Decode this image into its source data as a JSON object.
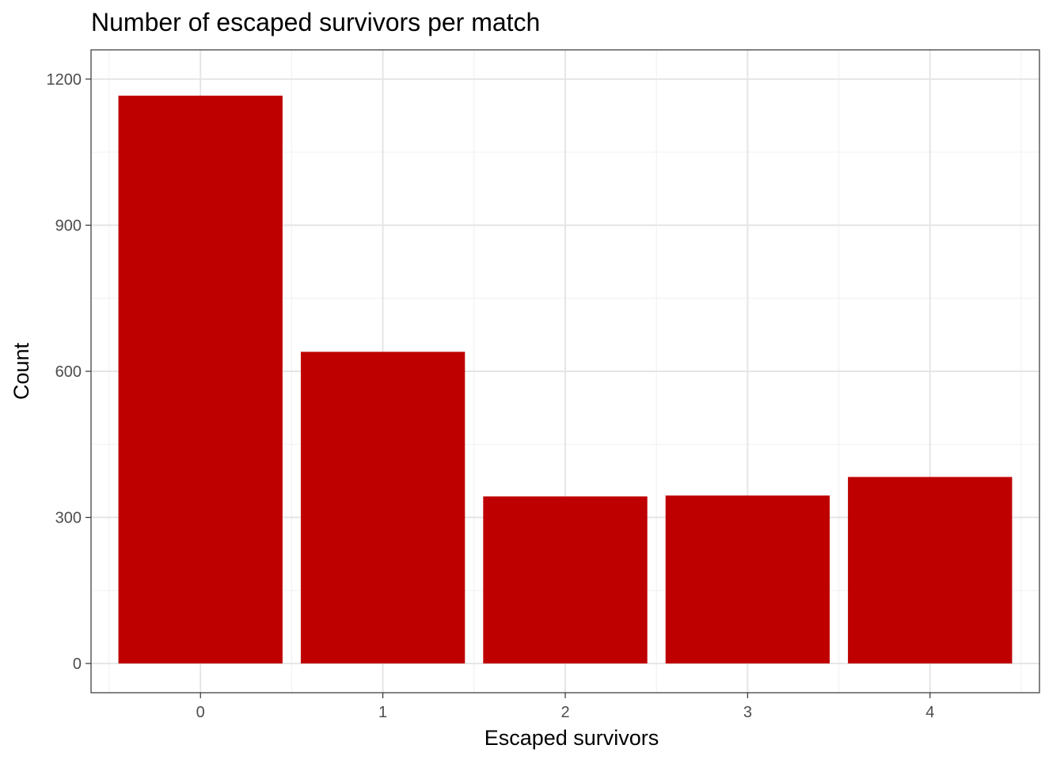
{
  "chart_data": {
    "type": "bar",
    "title": "Number of escaped survivors per match",
    "xlabel": "Escaped survivors",
    "ylabel": "Count",
    "categories": [
      "0",
      "1",
      "2",
      "3",
      "4"
    ],
    "values": [
      1166,
      640,
      343,
      345,
      383
    ],
    "yticks": [
      0,
      300,
      600,
      900,
      1200
    ],
    "ylim": [
      -60,
      1260
    ],
    "grid": true,
    "bar_color": "#BE0000",
    "legend": "none"
  }
}
